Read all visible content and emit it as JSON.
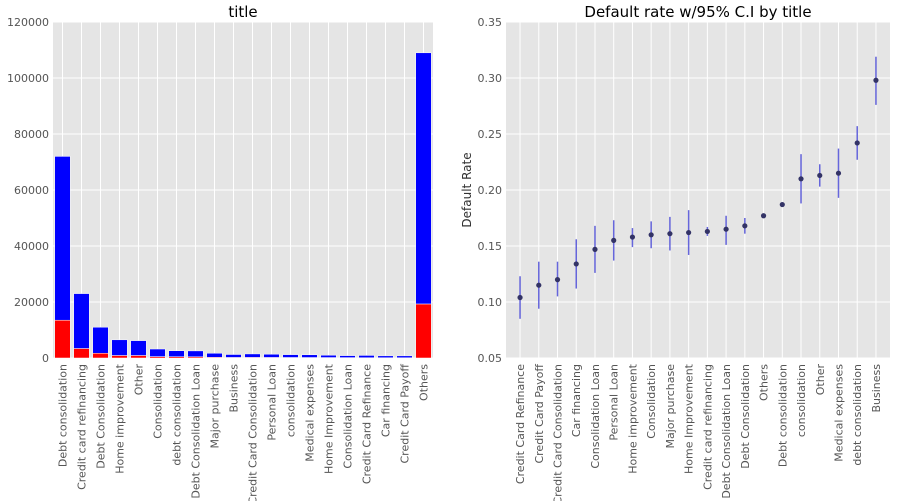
{
  "colors": {
    "background": "#e5e5e5",
    "grid": "#ffffff",
    "defaulted": "#ff0000",
    "current": "#0000ff",
    "point": "#333366",
    "error_bar": "#4b4bd6"
  },
  "chart_data": [
    {
      "type": "bar",
      "stacked": true,
      "title": "title",
      "xlabel": "",
      "ylabel": "",
      "ylim": [
        0,
        120000
      ],
      "yticks": [
        0,
        20000,
        40000,
        60000,
        80000,
        100000,
        120000
      ],
      "yticklabels": [
        "0",
        "20000",
        "40000",
        "60000",
        "80000",
        "100000",
        "120000"
      ],
      "grid": true,
      "categories": [
        "Debt consolidation",
        "Credit card refinancing",
        "Debt Consolidation",
        "Home improvement",
        "Other",
        "Consolidation",
        "debt consolidation",
        "Debt Consolidation Loan",
        "Major purchase",
        "Business",
        "Credit Card Consolidation",
        "Personal Loan",
        "consolidation",
        "Medical expenses",
        "Home Improvement",
        "Consolidation Loan",
        "Credit Card Refinance",
        "Car financing",
        "Credit Card Payoff",
        "Others"
      ],
      "series": [
        {
          "color": "#ff0000",
          "values": [
            13500,
            3400,
            1700,
            900,
            900,
            500,
            450,
            420,
            250,
            200,
            220,
            200,
            180,
            170,
            160,
            140,
            100,
            100,
            90,
            19300
          ]
        },
        {
          "color": "#0000ff",
          "values": [
            58500,
            19600,
            9300,
            5600,
            5300,
            2700,
            2150,
            2120,
            1450,
            1050,
            1230,
            1150,
            1020,
            980,
            840,
            710,
            820,
            670,
            680,
            89700
          ]
        }
      ]
    },
    {
      "type": "scatter",
      "title": "Default rate w/95% C.I by title",
      "xlabel": "",
      "ylabel": "Default Rate",
      "ylim": [
        0.05,
        0.35
      ],
      "yticks": [
        0.05,
        0.1,
        0.15,
        0.2,
        0.25,
        0.3,
        0.35
      ],
      "yticklabels": [
        "0.05",
        "0.10",
        "0.15",
        "0.20",
        "0.25",
        "0.30",
        "0.35"
      ],
      "grid": true,
      "categories": [
        "Credit Card Refinance",
        "Credit Card Payoff",
        "Credit Card Consolidation",
        "Car financing",
        "Consolidation Loan",
        "Personal Loan",
        "Home improvement",
        "Consolidation",
        "Major purchase",
        "Home Improvement",
        "Credit card refinancing",
        "Debt Consolidation Loan",
        "Debt Consolidation",
        "Others",
        "Debt consolidation",
        "consolidation",
        "Other",
        "Medical expenses",
        "debt consolidation",
        "Business"
      ],
      "values": [
        0.104,
        0.115,
        0.12,
        0.134,
        0.147,
        0.155,
        0.158,
        0.16,
        0.161,
        0.162,
        0.163,
        0.165,
        0.168,
        0.177,
        0.187,
        0.21,
        0.213,
        0.215,
        0.242,
        0.298
      ],
      "ci_low": [
        0.085,
        0.094,
        0.105,
        0.112,
        0.126,
        0.137,
        0.149,
        0.148,
        0.146,
        0.142,
        0.159,
        0.151,
        0.161,
        0.176,
        0.186,
        0.188,
        0.203,
        0.193,
        0.227,
        0.276
      ],
      "ci_high": [
        0.123,
        0.136,
        0.136,
        0.156,
        0.168,
        0.173,
        0.166,
        0.172,
        0.176,
        0.182,
        0.167,
        0.177,
        0.175,
        0.179,
        0.189,
        0.232,
        0.223,
        0.237,
        0.257,
        0.319
      ]
    }
  ]
}
